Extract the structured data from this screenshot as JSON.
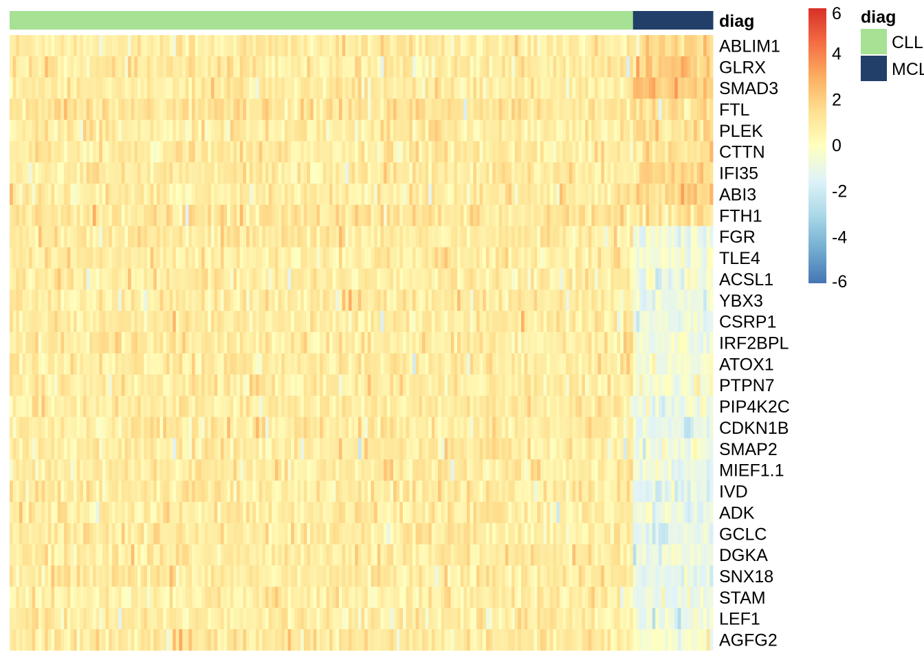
{
  "chart_data": {
    "type": "heatmap",
    "annotation": {
      "name": "diag",
      "groups": [
        {
          "label": "CLL",
          "color": "#A6E194",
          "n_columns": 195
        },
        {
          "label": "MCL",
          "color": "#223F6A",
          "n_columns": 25
        }
      ]
    },
    "rows": [
      "ABLIM1",
      "GLRX",
      "SMAD3",
      "FTL",
      "PLEK",
      "CTTN",
      "IFI35",
      "ABI3",
      "FTH1",
      "FGR",
      "TLE4",
      "ACSL1",
      "YBX3",
      "CSRP1",
      "IRF2BPL",
      "ATOX1",
      "PTPN7",
      "PIP4K2C",
      "CDKN1B",
      "SMAP2",
      "MIEF1.1",
      "IVD",
      "ADK",
      "GCLC",
      "DGKA",
      "SNX18",
      "STAM",
      "LEF1",
      "AGFG2"
    ],
    "group_mean_z": {
      "CLL": [
        0.9,
        0.9,
        0.9,
        1.2,
        0.9,
        0.9,
        0.9,
        0.9,
        1.2,
        0.9,
        0.9,
        0.9,
        0.9,
        0.9,
        0.9,
        0.9,
        0.9,
        0.9,
        0.9,
        0.9,
        0.9,
        0.9,
        0.9,
        0.9,
        0.9,
        0.9,
        0.8,
        0.9,
        1.0
      ],
      "MCL": [
        1.8,
        2.0,
        2.2,
        1.5,
        1.6,
        1.4,
        1.6,
        1.7,
        0.9,
        -0.8,
        -0.6,
        -0.7,
        -1.0,
        -0.7,
        -0.6,
        -0.6,
        -0.4,
        -0.7,
        -1.2,
        -0.8,
        -1.0,
        -1.2,
        -0.8,
        -1.2,
        -1.0,
        -1.2,
        -0.9,
        -0.8,
        -0.5
      ]
    },
    "colorbar": {
      "ticks": [
        "6",
        "4",
        "2",
        "0",
        "-2",
        "-4",
        "-6"
      ],
      "range": [
        -6,
        6
      ],
      "colors": [
        "#4575B4",
        "#74ADD1",
        "#ABD9E9",
        "#E0F3F8",
        "#FFFFBF",
        "#FEE090",
        "#FDAE61",
        "#F46D43",
        "#D73027"
      ]
    },
    "annotation_title": "diag",
    "legend_title": "diag"
  }
}
